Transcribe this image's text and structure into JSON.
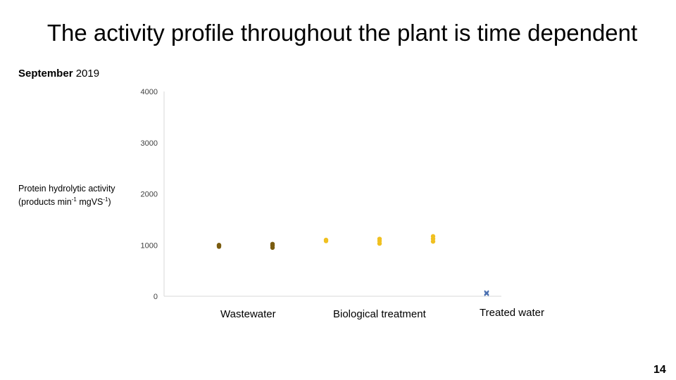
{
  "slide": {
    "title": "The activity profile throughout the plant is time dependent",
    "subtitle_bold": "September",
    "subtitle_rest": " 2019",
    "page_number": "14"
  },
  "chart_data": {
    "type": "scatter",
    "title": "",
    "ylabel_main": "Protein hydrolytic activity",
    "ylabel_unit_prefix": "(products min",
    "ylabel_unit_exp1": "-1",
    "ylabel_unit_mid": " mgVS",
    "ylabel_unit_exp2": "-1",
    "ylabel_unit_suffix": ")",
    "ylim": [
      0,
      4000
    ],
    "yticks": [
      "0",
      "1000",
      "2000",
      "3000",
      "4000"
    ],
    "grid": false,
    "categories": [
      "Wastewater",
      "Biological treatment",
      "Treated water"
    ],
    "series": [
      {
        "color": "#7a5c10",
        "marker": "circle",
        "points": [
          {
            "x": 1,
            "y": 970
          },
          {
            "x": 1,
            "y": 990
          },
          {
            "x": 1,
            "y": 1000
          },
          {
            "x": 2,
            "y": 950
          },
          {
            "x": 2,
            "y": 990
          },
          {
            "x": 2,
            "y": 1020
          }
        ]
      },
      {
        "color": "#f0c020",
        "marker": "circle",
        "points": [
          {
            "x": 3,
            "y": 1080
          },
          {
            "x": 3,
            "y": 1100
          },
          {
            "x": 4,
            "y": 1030
          },
          {
            "x": 4,
            "y": 1080
          },
          {
            "x": 4,
            "y": 1120
          },
          {
            "x": 5,
            "y": 1070
          },
          {
            "x": 5,
            "y": 1120
          },
          {
            "x": 5,
            "y": 1170
          }
        ]
      },
      {
        "color": "#4a6fb0",
        "marker": "cross",
        "points": [
          {
            "x": 6,
            "y": 50
          },
          {
            "x": 6,
            "y": 70
          }
        ]
      }
    ]
  }
}
